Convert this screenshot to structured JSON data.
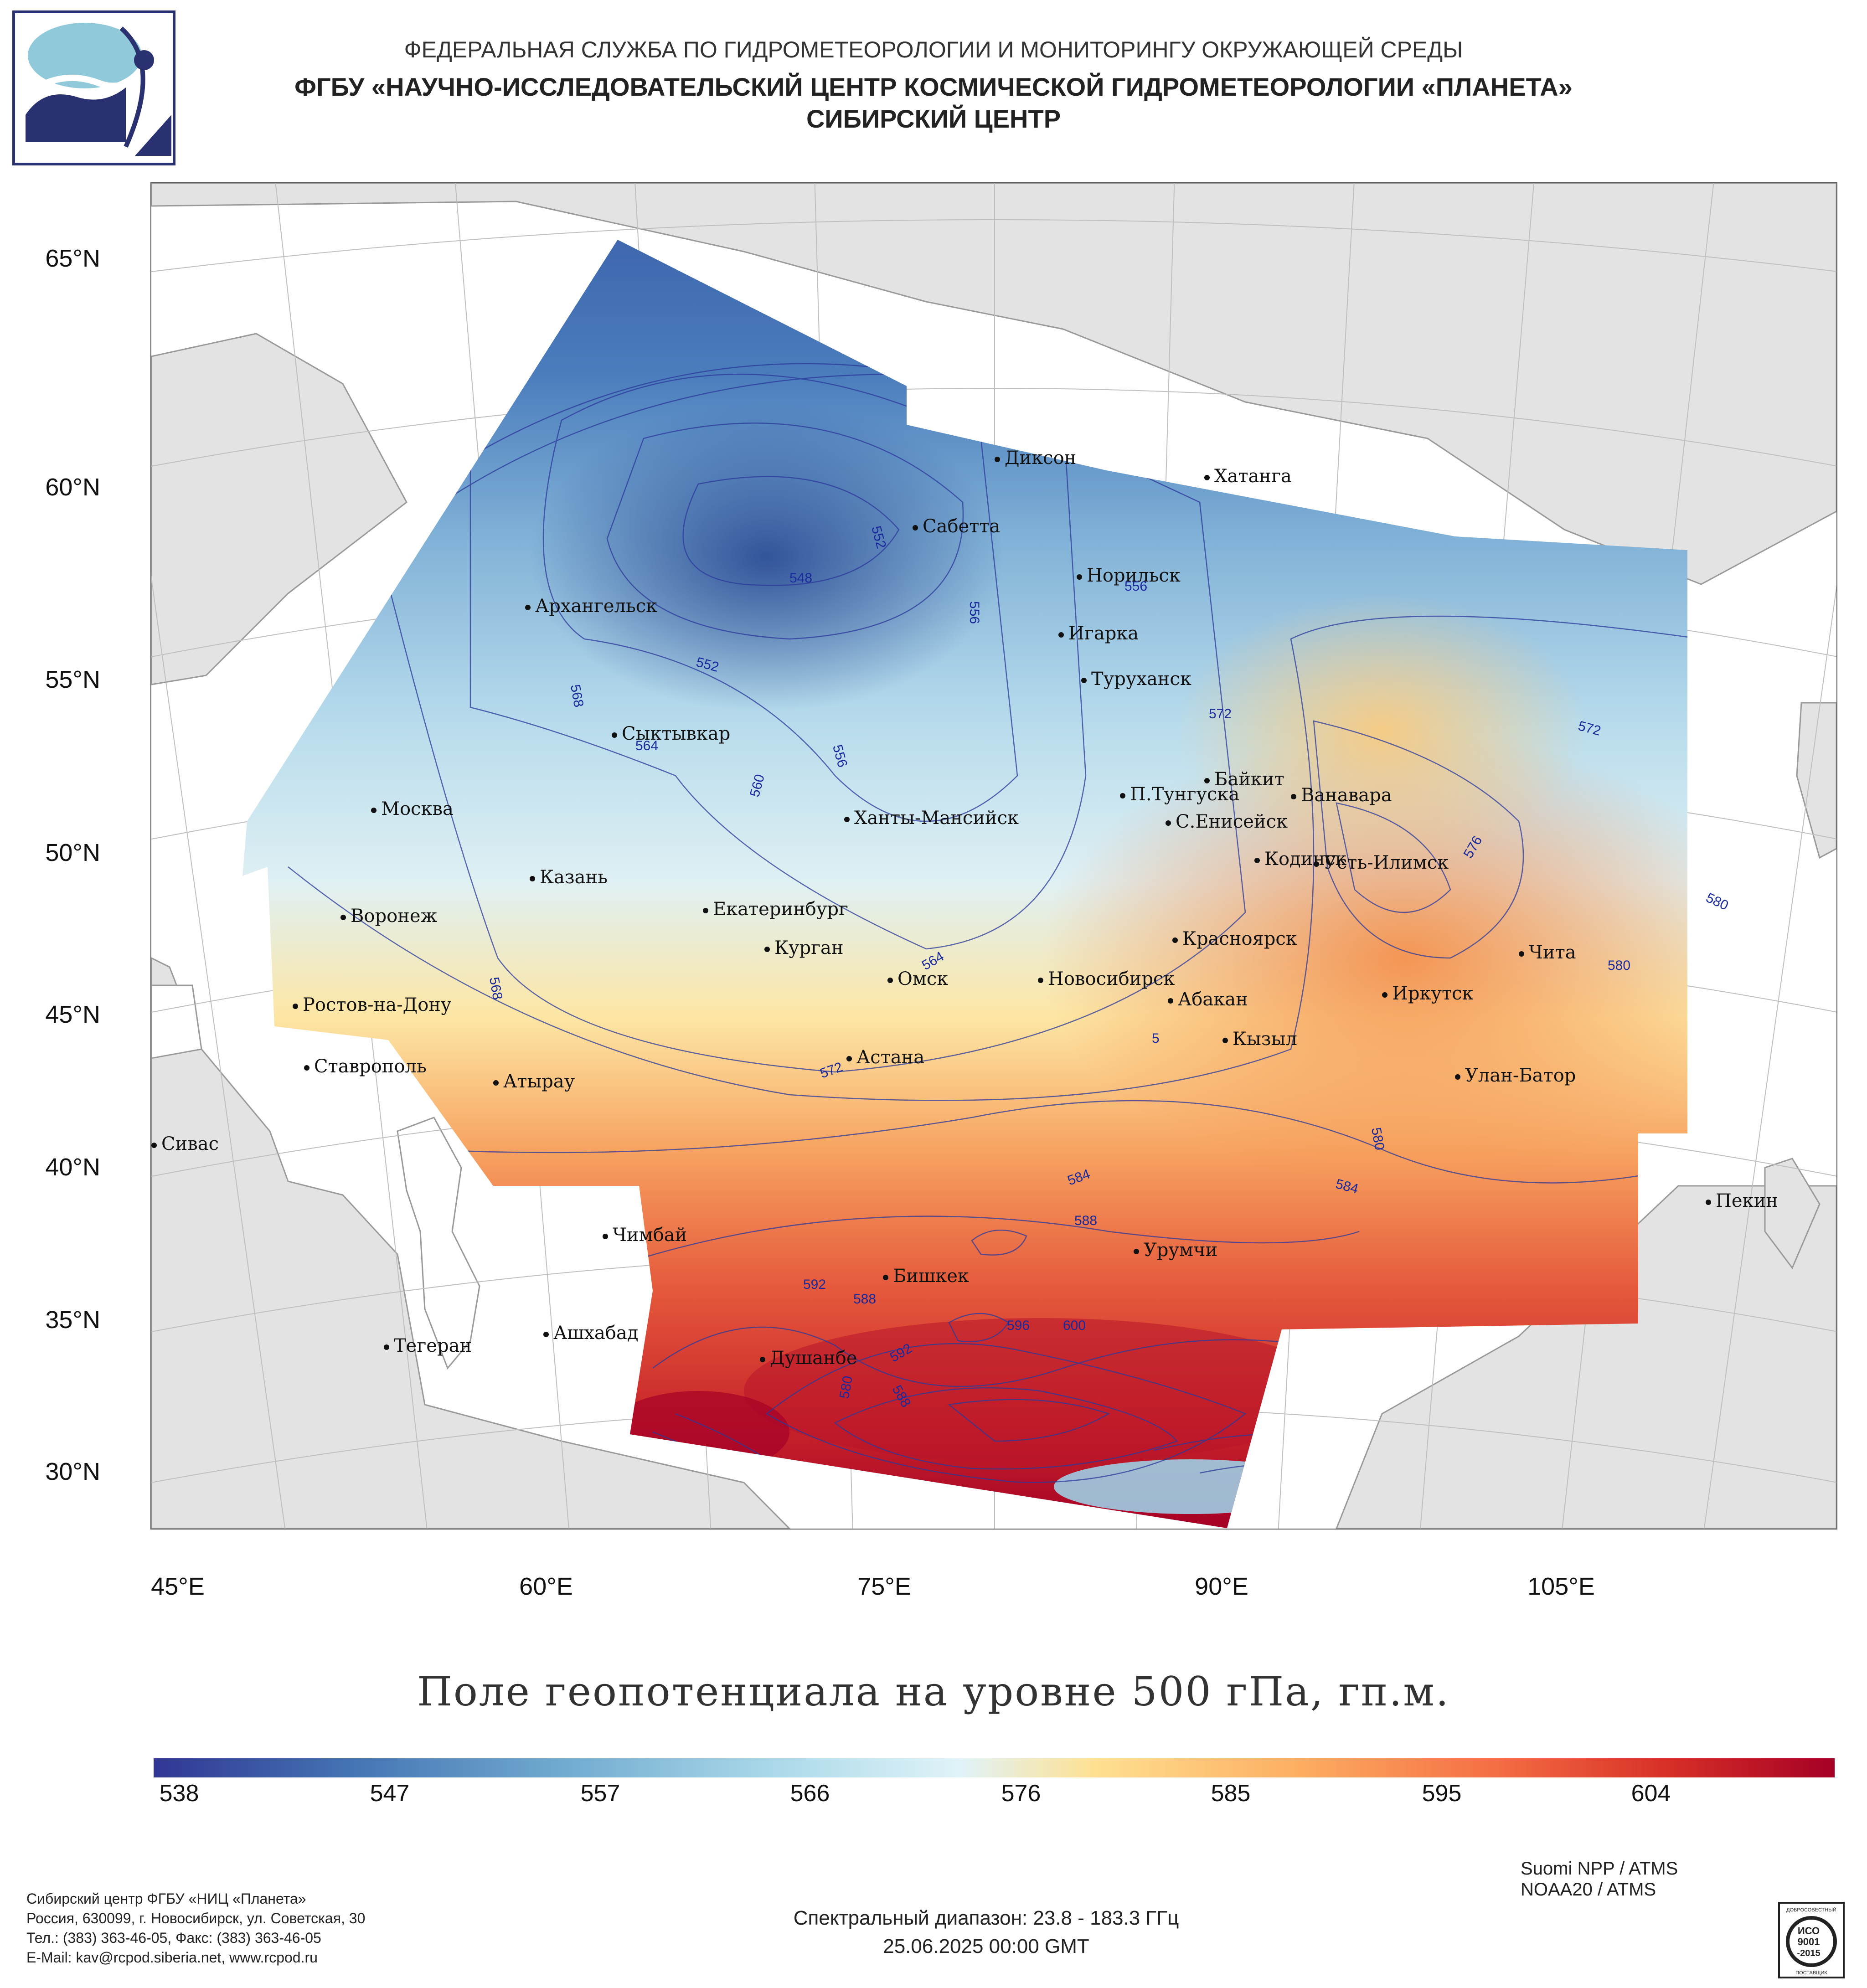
{
  "header": {
    "line1": "ФЕДЕРАЛЬНАЯ СЛУЖБА ПО ГИДРОМЕТЕОРОЛОГИИ И МОНИТОРИНГУ ОКРУЖАЮЩЕЙ СРЕДЫ",
    "line2": "ФГБУ «НАУЧНО-ИССЛЕДОВАТЕЛЬСКИЙ ЦЕНТР КОСМИЧЕСКОЙ ГИДРОМЕТЕОРОЛОГИИ «ПЛАНЕТА»",
    "line3": "СИБИРСКИЙ ЦЕНТР"
  },
  "map": {
    "title": "Поле геопотенциала на уровне 500 гПа, гп.м.",
    "lat_labels": [
      "65°N",
      "60°N",
      "55°N",
      "50°N",
      "45°N",
      "40°N",
      "35°N",
      "30°N"
    ],
    "lon_labels": [
      "45°E",
      "60°E",
      "75°E",
      "90°E",
      "105°E"
    ],
    "contour_labels": [
      "548",
      "552",
      "552",
      "556",
      "556",
      "556",
      "560",
      "564",
      "564",
      "564",
      "568",
      "568",
      "572",
      "572",
      "572",
      "576",
      "580",
      "580",
      "580",
      "580",
      "584",
      "584",
      "588",
      "588",
      "588",
      "592",
      "592",
      "596",
      "600",
      "5"
    ],
    "cities": [
      "Диксон",
      "Хатанга",
      "Сабетта",
      "Норильск",
      "Архангельск",
      "Игарка",
      "Туруханск",
      "Сыктывкар",
      "Байкит",
      "П.Тунгуска",
      "Ванавара",
      "Москва",
      "Ханты-Мансийск",
      "С.Енисейск",
      "Кодинск",
      "Усть-Илимск",
      "Казань",
      "Екатеринбург",
      "Воронеж",
      "Красноярск",
      "Курган",
      "Чита",
      "Омск",
      "Новосибирск",
      "Иркутск",
      "Ростов-на-Дону",
      "Абакан",
      "Кызыл",
      "Астана",
      "Ставрополь",
      "Улан-Батор",
      "Атырау",
      "Сивас",
      "Пекин",
      "Чимбай",
      "Урумчи",
      "Бишкек",
      "Ашхабад",
      "Тегеран",
      "Душанбе"
    ],
    "colors": {
      "low": "#313695",
      "mid": "#e0f3f8",
      "high": "#a50026",
      "land": "#e2e2e2",
      "contour": "#2b3a9a"
    }
  },
  "colorbar": {
    "ticks": [
      "538",
      "547",
      "557",
      "566",
      "576",
      "585",
      "595",
      "604"
    ]
  },
  "footer": {
    "org": [
      "Сибирский центр ФГБУ «НИЦ «Планета»",
      "Россия, 630099, г. Новосибирск, ул. Советская, 30",
      "Тел.: (383) 363-46-05, Факс: (383) 363-46-05",
      "E-Mail: kav@rcpod.siberia.net, www.rcpod.ru"
    ],
    "satellites": [
      "Suomi NPP / ATMS",
      "NOAA20 / ATMS"
    ],
    "spectral": "Спектральный диапазон: 23.8 - 183.3 ГГц",
    "datetime": "25.06.2025 00:00 GMT",
    "badge": {
      "top": "ДОБРОСОВЕСТНЫЙ",
      "l1": "ИСО",
      "l2": "9001",
      "l3": "-2015",
      "bottom": "ПОСТАВЩИК"
    }
  }
}
